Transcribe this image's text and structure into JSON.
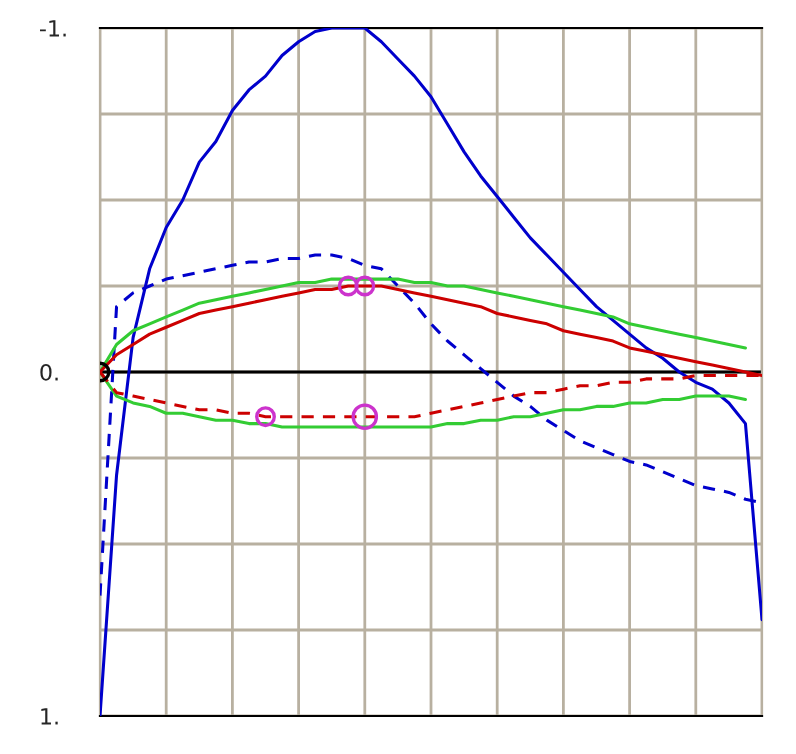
{
  "chart_data": {
    "type": "line",
    "categories": [
      null,
      null,
      null,
      null,
      null,
      null,
      null,
      null,
      null,
      null,
      null,
      null,
      null,
      null,
      null,
      null,
      null,
      null,
      null,
      null,
      null,
      null,
      null,
      null,
      null,
      null,
      null,
      null,
      null,
      null,
      null,
      null,
      null,
      null,
      null,
      null,
      null,
      null,
      null,
      null,
      null
    ],
    "ylim": [
      1,
      -1
    ],
    "yticks": [
      {
        "value": -1,
        "label": "-1."
      },
      {
        "value": -0.75,
        "label": null
      },
      {
        "value": -0.5,
        "label": null
      },
      {
        "value": -0.25,
        "label": null
      },
      {
        "value": 0,
        "label": "0."
      },
      {
        "value": 0.25,
        "label": null
      },
      {
        "value": 0.5,
        "label": null
      },
      {
        "value": 0.75,
        "label": null
      },
      {
        "value": 1,
        "label": "1."
      }
    ],
    "tick_labels": "y",
    "grid": true,
    "ref_lines": [
      {
        "axis": "y",
        "value": 0,
        "color": "#000000"
      }
    ],
    "series": [
      {
        "color": "#0000cc",
        "line_style": "solid",
        "values": [
          1.0,
          0.3,
          -0.1,
          -0.3,
          -0.42,
          -0.5,
          -0.61,
          -0.67,
          -0.76,
          -0.82,
          -0.86,
          -0.92,
          -0.96,
          -0.99,
          -1.0,
          -1.0,
          -1.0,
          -0.96,
          -0.91,
          -0.86,
          -0.8,
          -0.72,
          -0.64,
          -0.57,
          -0.51,
          -0.45,
          -0.39,
          -0.34,
          -0.29,
          -0.24,
          -0.19,
          -0.15,
          -0.11,
          -0.07,
          -0.04,
          0.0,
          0.03,
          0.05,
          0.09,
          0.15,
          0.72
        ]
      },
      {
        "color": "#0000cc",
        "line_style": "dashed",
        "values": [
          0.65,
          -0.19,
          -0.23,
          -0.25,
          -0.27,
          -0.28,
          -0.29,
          -0.3,
          -0.31,
          -0.32,
          -0.32,
          -0.33,
          -0.33,
          -0.34,
          -0.34,
          -0.33,
          -0.31,
          -0.3,
          -0.25,
          -0.2,
          -0.14,
          -0.09,
          -0.05,
          -0.01,
          0.03,
          0.07,
          0.1,
          0.14,
          0.17,
          0.2,
          0.22,
          0.24,
          0.26,
          0.27,
          0.29,
          0.31,
          0.33,
          0.34,
          0.35,
          0.37,
          0.38
        ]
      },
      {
        "color": "#33cc33",
        "line_style": "solid",
        "values": [
          0,
          -0.08,
          -0.12,
          -0.14,
          -0.16,
          -0.18,
          -0.2,
          -0.21,
          -0.22,
          -0.23,
          -0.24,
          -0.25,
          -0.26,
          -0.26,
          -0.27,
          -0.27,
          -0.27,
          -0.27,
          -0.27,
          -0.26,
          -0.26,
          -0.25,
          -0.25,
          -0.24,
          -0.23,
          -0.22,
          -0.21,
          -0.2,
          -0.19,
          -0.18,
          -0.17,
          -0.16,
          -0.14,
          -0.13,
          -0.12,
          -0.11,
          -0.1,
          -0.09,
          -0.08,
          -0.07,
          null
        ]
      },
      {
        "color": "#33cc33",
        "line_style": "solid",
        "values": [
          0,
          0.07,
          0.09,
          0.1,
          0.12,
          0.12,
          0.13,
          0.14,
          0.14,
          0.15,
          0.15,
          0.16,
          0.16,
          0.16,
          0.16,
          0.16,
          0.16,
          0.16,
          0.16,
          0.16,
          0.16,
          0.15,
          0.15,
          0.14,
          0.14,
          0.13,
          0.13,
          0.12,
          0.11,
          0.11,
          0.1,
          0.1,
          0.09,
          0.09,
          0.08,
          0.08,
          0.07,
          0.07,
          0.07,
          0.08,
          null
        ]
      },
      {
        "color": "#cc0000",
        "line_style": "solid",
        "values": [
          0,
          -0.05,
          -0.08,
          -0.11,
          -0.13,
          -0.15,
          -0.17,
          -0.18,
          -0.19,
          -0.2,
          -0.21,
          -0.22,
          -0.23,
          -0.24,
          -0.24,
          -0.25,
          -0.25,
          -0.25,
          -0.24,
          -0.23,
          -0.22,
          -0.21,
          -0.2,
          -0.19,
          -0.17,
          -0.16,
          -0.15,
          -0.14,
          -0.12,
          -0.11,
          -0.1,
          -0.09,
          -0.07,
          -0.06,
          -0.05,
          -0.04,
          -0.03,
          -0.02,
          -0.01,
          0.0,
          0.01
        ]
      },
      {
        "color": "#cc0000",
        "line_style": "dashed",
        "values": [
          0,
          0.06,
          0.07,
          0.08,
          0.09,
          0.1,
          0.11,
          0.11,
          0.12,
          0.12,
          0.13,
          0.13,
          0.13,
          0.13,
          0.13,
          0.13,
          0.13,
          0.13,
          0.13,
          0.13,
          0.12,
          0.11,
          0.1,
          0.09,
          0.08,
          0.07,
          0.06,
          0.06,
          0.05,
          0.04,
          0.04,
          0.03,
          0.03,
          0.02,
          0.02,
          0.02,
          0.01,
          0.01,
          0.01,
          0.01,
          0.01
        ]
      },
      {
        "type": "scatter",
        "color": "#cc33cc",
        "marker": "circle",
        "values": [
          null,
          null,
          null,
          null,
          null,
          null,
          null,
          null,
          null,
          null,
          0.13,
          null,
          null,
          null,
          null,
          -0.25,
          -0.25,
          null,
          null,
          null,
          null,
          null,
          null,
          null,
          null,
          null,
          null,
          null,
          null,
          null,
          null,
          null,
          null,
          null,
          null,
          null,
          null,
          null,
          null,
          null,
          null
        ]
      },
      {
        "type": "scatter",
        "color": "#cc33cc",
        "marker": "circle",
        "values": [
          null,
          null,
          null,
          null,
          null,
          null,
          null,
          null,
          null,
          null,
          null,
          null,
          null,
          null,
          null,
          null,
          0.13,
          null,
          null,
          null,
          null,
          null,
          null,
          null,
          null,
          null,
          null,
          null,
          null,
          null,
          null,
          null,
          null,
          null,
          null,
          null,
          null,
          null,
          null,
          null,
          null
        ]
      },
      {
        "type": "scatter",
        "color": "#000000",
        "marker": "circle",
        "values": [
          0,
          null,
          null,
          null,
          null,
          null,
          null,
          null,
          null,
          null,
          null,
          null,
          null,
          null,
          null,
          null,
          null,
          null,
          null,
          null,
          null,
          null,
          null,
          null,
          null,
          null,
          null,
          null,
          null,
          null,
          null,
          null,
          null,
          null,
          null,
          null,
          null,
          null,
          null,
          null,
          null
        ]
      }
    ]
  }
}
